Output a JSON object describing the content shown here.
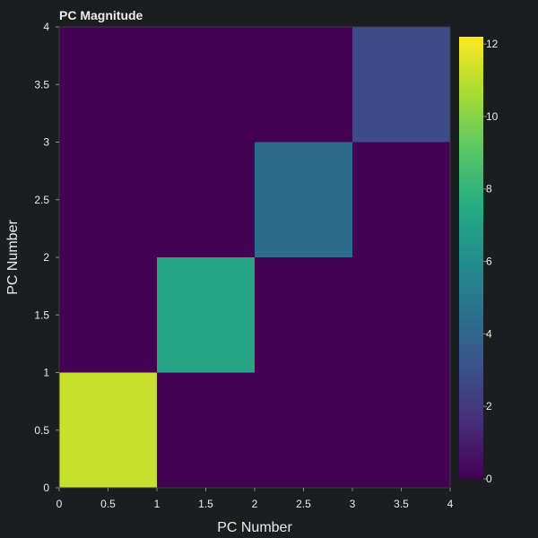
{
  "chart_data": {
    "type": "heatmap",
    "title": "PC Magnitude",
    "xlabel": "PC Number",
    "ylabel": "PC Number",
    "xlim": [
      0,
      4
    ],
    "ylim": [
      0,
      4
    ],
    "x_edges": [
      0,
      1,
      2,
      3,
      4
    ],
    "y_edges": [
      0,
      1,
      2,
      3,
      4
    ],
    "x_ticks": [
      "0",
      "0.5",
      "1",
      "1.5",
      "2",
      "2.5",
      "3",
      "3.5",
      "4"
    ],
    "y_ticks": [
      "0",
      "0.5",
      "1",
      "1.5",
      "2",
      "2.5",
      "3",
      "3.5",
      "4"
    ],
    "values": [
      [
        11.2,
        0,
        0,
        0
      ],
      [
        0,
        7.2,
        0,
        0
      ],
      [
        0,
        0,
        4.3,
        0
      ],
      [
        0,
        0,
        0,
        2.8
      ]
    ],
    "colorscale": "viridis",
    "colorbar": {
      "range": [
        0,
        12.2
      ],
      "ticks": [
        "0",
        "2",
        "4",
        "6",
        "8",
        "10",
        "12"
      ],
      "position": "right"
    }
  },
  "colors": {
    "background": "#1b1d1f",
    "text": "#ececec"
  }
}
